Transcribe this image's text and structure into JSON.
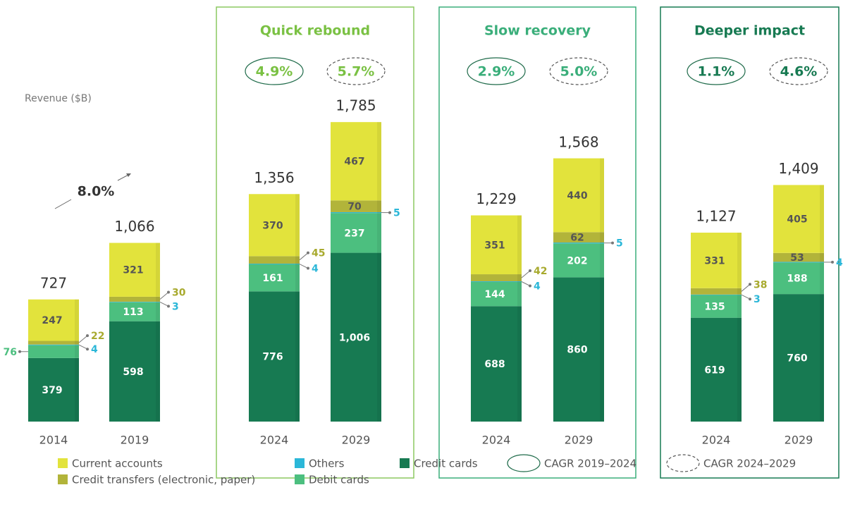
{
  "chart_data": {
    "type": "stacked_bar",
    "y_label": "Revenue ($B)",
    "annotation": "8.0%",
    "categories": [
      "2014",
      "2019",
      "2024",
      "2029",
      "2024",
      "2029",
      "2024",
      "2029"
    ],
    "ylim": [
      0,
      2500
    ],
    "series": [
      {
        "name": "Credit cards",
        "color": "#177a52",
        "values": [
          379,
          598,
          776,
          1006,
          688,
          860,
          619,
          760
        ],
        "value_labels": [
          "379",
          "598",
          "776",
          "1,006",
          "688",
          "860",
          "619",
          "760"
        ]
      },
      {
        "name": "Debit cards",
        "color": "#4cbf7f",
        "values": [
          76,
          113,
          161,
          237,
          144,
          202,
          135,
          188
        ]
      },
      {
        "name": "Others",
        "color": "#2bb7d8",
        "values": [
          4,
          3,
          4,
          5,
          4,
          5,
          3,
          4
        ]
      },
      {
        "name": "Credit transfers (electronic, paper)",
        "color": "#b2b43a",
        "values": [
          22,
          30,
          45,
          70,
          42,
          62,
          38,
          53
        ]
      },
      {
        "name": "Current accounts",
        "color": "#e2e33c",
        "values": [
          247,
          321,
          370,
          467,
          351,
          440,
          331,
          405
        ]
      }
    ],
    "totals": [
      727,
      1066,
      1356,
      1785,
      1229,
      1568,
      1127,
      1409
    ],
    "total_labels": [
      "727",
      "1,066",
      "1,356",
      "1,785",
      "1,229",
      "1,568",
      "1,127",
      "1,409"
    ],
    "panels": [
      {
        "title": "Quick rebound",
        "color": "#7ac143",
        "cagr": [
          "4.9%",
          "5.7%"
        ]
      },
      {
        "title": "Slow recovery",
        "color": "#3aae7a",
        "cagr": [
          "2.9%",
          "5.0%"
        ]
      },
      {
        "title": "Deeper impact",
        "color": "#177a52",
        "cagr": [
          "1.1%",
          "4.6%"
        ]
      }
    ],
    "cagr_legend": [
      "CAGR 2019–2024",
      "CAGR 2024–2029"
    ]
  }
}
